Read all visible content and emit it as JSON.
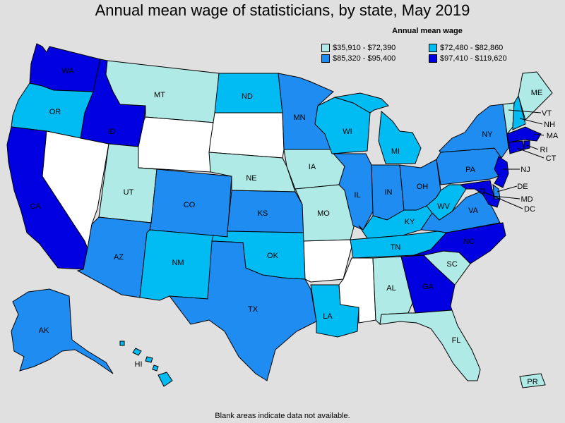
{
  "title": "Annual mean wage of statisticians, by state, May 2019",
  "legend": {
    "title": "Annual mean wage",
    "items": [
      {
        "label": "$35,910 - $72,390",
        "color": "#b0eae6"
      },
      {
        "label": "$72,480 - $82,860",
        "color": "#00bcf2"
      },
      {
        "label": "$85,320 - $95,400",
        "color": "#1e8cf0"
      },
      {
        "label": "$97,410 - $119,620",
        "color": "#0000e0"
      }
    ]
  },
  "footer": "Blank areas indicate data not available.",
  "states": {
    "WA": {
      "label": "WA",
      "bin": 3
    },
    "OR": {
      "label": "OR",
      "bin": 1
    },
    "CA": {
      "label": "CA",
      "bin": 3
    },
    "ID": {
      "label": "ID",
      "bin": 3
    },
    "NV": {
      "label": "",
      "bin": -1
    },
    "MT": {
      "label": "MT",
      "bin": 0
    },
    "WY": {
      "label": "",
      "bin": -1
    },
    "UT": {
      "label": "UT",
      "bin": 0
    },
    "AZ": {
      "label": "AZ",
      "bin": 2
    },
    "CO": {
      "label": "CO",
      "bin": 2
    },
    "NM": {
      "label": "NM",
      "bin": 1
    },
    "ND": {
      "label": "ND",
      "bin": 1
    },
    "SD": {
      "label": "",
      "bin": -1
    },
    "NE": {
      "label": "NE",
      "bin": 0
    },
    "KS": {
      "label": "KS",
      "bin": 2
    },
    "OK": {
      "label": "OK",
      "bin": 1
    },
    "TX": {
      "label": "TX",
      "bin": 2
    },
    "MN": {
      "label": "MN",
      "bin": 2
    },
    "IA": {
      "label": "IA",
      "bin": 0
    },
    "MO": {
      "label": "MO",
      "bin": 0
    },
    "AR": {
      "label": "",
      "bin": -1
    },
    "LA": {
      "label": "LA",
      "bin": 1
    },
    "WI": {
      "label": "WI",
      "bin": 1
    },
    "IL": {
      "label": "IL",
      "bin": 2
    },
    "MI": {
      "label": "MI",
      "bin": 1
    },
    "IN": {
      "label": "IN",
      "bin": 2
    },
    "OH": {
      "label": "OH",
      "bin": 2
    },
    "KY": {
      "label": "KY",
      "bin": 1
    },
    "TN": {
      "label": "TN",
      "bin": 1
    },
    "MS": {
      "label": "",
      "bin": -1
    },
    "AL": {
      "label": "AL",
      "bin": 0
    },
    "GA": {
      "label": "GA",
      "bin": 3
    },
    "FL": {
      "label": "FL",
      "bin": 0
    },
    "SC": {
      "label": "SC",
      "bin": 0
    },
    "NC": {
      "label": "NC",
      "bin": 3
    },
    "VA": {
      "label": "VA",
      "bin": 2
    },
    "WV": {
      "label": "WV",
      "bin": 1
    },
    "PA": {
      "label": "PA",
      "bin": 2
    },
    "NY": {
      "label": "NY",
      "bin": 2
    },
    "VT": {
      "label": "VT",
      "bin": 0
    },
    "NH": {
      "label": "NH",
      "bin": 1
    },
    "ME": {
      "label": "ME",
      "bin": 0
    },
    "MA": {
      "label": "MA",
      "bin": 3
    },
    "RI": {
      "label": "RI",
      "bin": 3
    },
    "CT": {
      "label": "CT",
      "bin": 3
    },
    "NJ": {
      "label": "NJ",
      "bin": 3
    },
    "DE": {
      "label": "DE",
      "bin": 2
    },
    "MD": {
      "label": "MD",
      "bin": 3
    },
    "DC": {
      "label": "DC",
      "bin": 3
    },
    "AK": {
      "label": "AK",
      "bin": 2
    },
    "HI": {
      "label": "HI",
      "bin": 1
    },
    "PR": {
      "label": "PR",
      "bin": 0
    }
  }
}
